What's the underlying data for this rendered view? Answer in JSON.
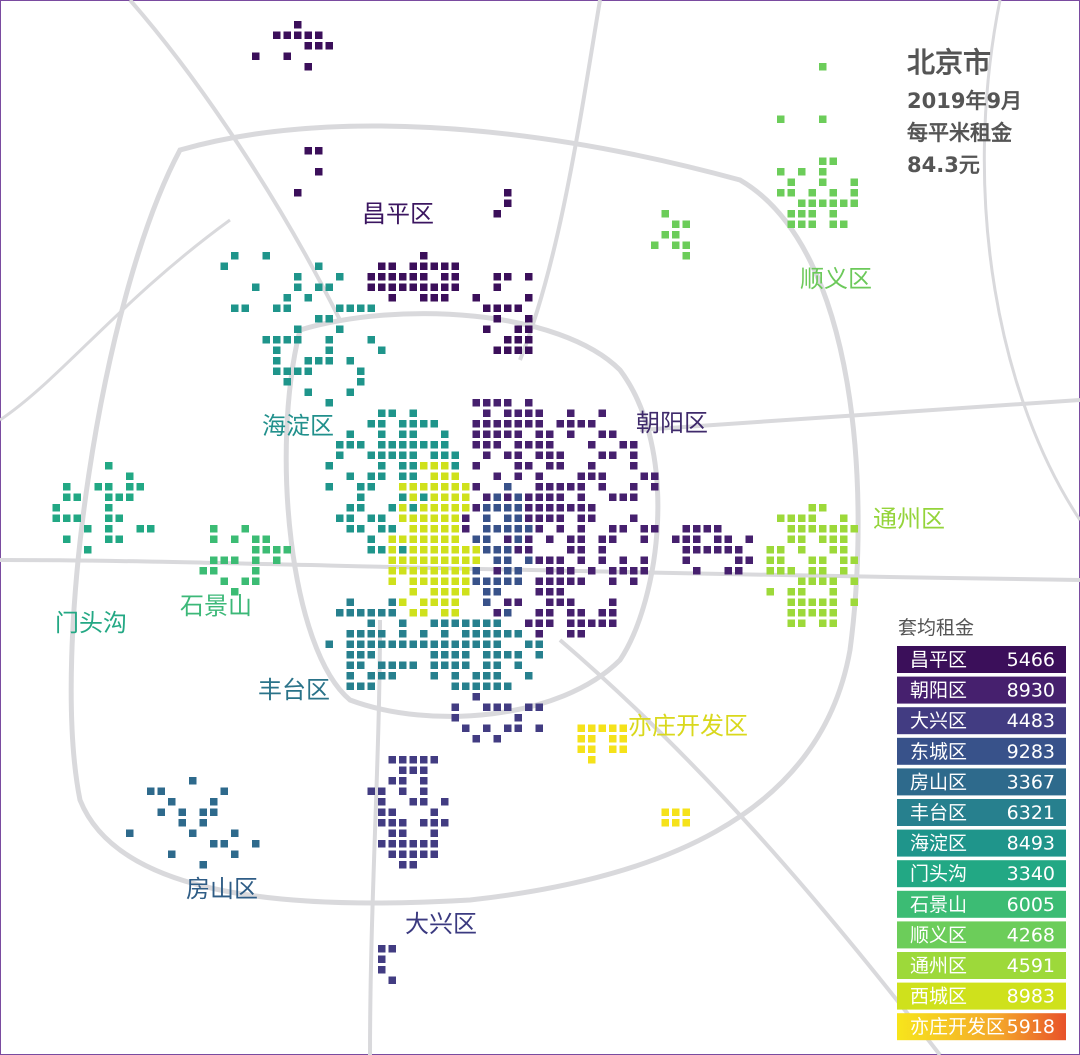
{
  "header": {
    "title": "北京市",
    "date": "2019年9月",
    "metric": "每平米租金",
    "value": "84.3元"
  },
  "map_labels": [
    {
      "text": "昌平区",
      "color": "#3b1560"
    },
    {
      "text": "朝阳区",
      "color": "#3f2a6b"
    },
    {
      "text": "大兴区",
      "color": "#3b3a80"
    },
    {
      "text": "房山区",
      "color": "#2f5d86"
    },
    {
      "text": "丰台区",
      "color": "#2a7389"
    },
    {
      "text": "海淀区",
      "color": "#21908c"
    },
    {
      "text": "门头沟",
      "color": "#23a884"
    },
    {
      "text": "石景山",
      "color": "#3cb878"
    },
    {
      "text": "顺义区",
      "color": "#6cc95a"
    },
    {
      "text": "通州区",
      "color": "#94d43a"
    },
    {
      "text": "亦庄开发区",
      "color": "#d9d81c"
    }
  ],
  "legend": {
    "title": "套均租金",
    "rows": [
      {
        "name": "昌平区",
        "value": 5466,
        "color": "#3b0f5a"
      },
      {
        "name": "朝阳区",
        "value": 8930,
        "color": "#46206e"
      },
      {
        "name": "大兴区",
        "value": 4483,
        "color": "#423c82"
      },
      {
        "name": "东城区",
        "value": 9283,
        "color": "#38528a"
      },
      {
        "name": "房山区",
        "value": 3367,
        "color": "#2e6a8c"
      },
      {
        "name": "丰台区",
        "value": 6321,
        "color": "#27808e"
      },
      {
        "name": "海淀区",
        "value": 8493,
        "color": "#1f958b"
      },
      {
        "name": "门头沟",
        "value": 3340,
        "color": "#22a884"
      },
      {
        "name": "石景山",
        "value": 6005,
        "color": "#3cbc74"
      },
      {
        "name": "顺义区",
        "value": 4268,
        "color": "#6ccd5a"
      },
      {
        "name": "通州区",
        "value": 4591,
        "color": "#9dd93a"
      },
      {
        "name": "西城区",
        "value": 8983,
        "color": "#cfe11c"
      },
      {
        "name": "亦庄开发区",
        "value": 5918,
        "color": "#f5d21a"
      }
    ]
  }
}
